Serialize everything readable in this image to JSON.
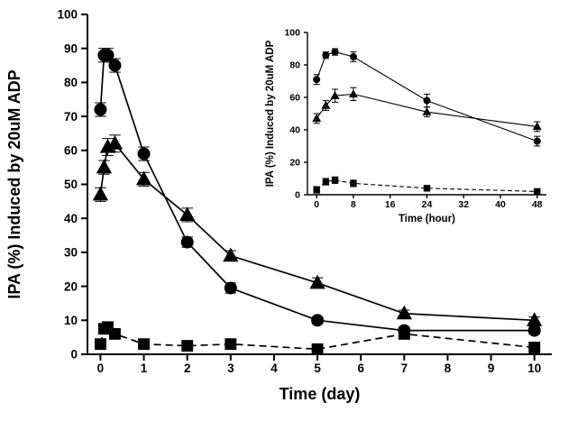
{
  "figure": {
    "background": "#ffffff",
    "ink": "#000000"
  },
  "chart_data": [
    {
      "id": "main",
      "type": "line",
      "title": "",
      "xlabel": "Time (day)",
      "ylabel": "IPA (%) Induced by 20uM ADP",
      "xlim": [
        0,
        10
      ],
      "ylim": [
        0,
        100
      ],
      "xticks": [
        0,
        1,
        2,
        3,
        4,
        5,
        6,
        7,
        8,
        9,
        10
      ],
      "yticks": [
        0,
        10,
        20,
        30,
        40,
        50,
        60,
        70,
        80,
        90,
        100
      ],
      "grid": false,
      "legend": "none",
      "series": [
        {
          "name": "circles",
          "marker": "circle",
          "line": "solid",
          "color": "#000000",
          "x": [
            0,
            0.083,
            0.167,
            0.333,
            1,
            2,
            3,
            5,
            7,
            10
          ],
          "y": [
            72,
            88,
            88,
            85,
            59,
            33,
            19.5,
            10,
            7,
            7
          ],
          "yerr": [
            2,
            2,
            2,
            2,
            2,
            1.5,
            1.5,
            1,
            1,
            1
          ]
        },
        {
          "name": "triangles",
          "marker": "triangle",
          "line": "solid",
          "color": "#000000",
          "x": [
            0,
            0.083,
            0.167,
            0.333,
            1,
            2,
            3,
            5,
            7,
            10
          ],
          "y": [
            47,
            55,
            61,
            62,
            51.5,
            41,
            29,
            21,
            12,
            10
          ],
          "yerr": [
            2,
            2,
            2.5,
            2.5,
            2,
            2,
            1.5,
            1.5,
            1,
            1
          ]
        },
        {
          "name": "squares",
          "marker": "square",
          "line": "dashed",
          "color": "#000000",
          "x": [
            0,
            0.083,
            0.167,
            0.333,
            1,
            2,
            3,
            5,
            7,
            10
          ],
          "y": [
            3,
            7.5,
            8,
            6,
            3,
            2.5,
            3,
            1.5,
            6,
            2
          ],
          "yerr": [
            1,
            1.5,
            1.5,
            1,
            1,
            1,
            1,
            0.5,
            1,
            0.5
          ]
        }
      ]
    },
    {
      "id": "inset",
      "type": "line",
      "title": "",
      "xlabel": "Time (hour)",
      "ylabel": "IPA (%) Induced by 20uM ADP",
      "xlim": [
        0,
        48
      ],
      "ylim": [
        0,
        100
      ],
      "xticks": [
        0,
        8,
        16,
        24,
        32,
        40,
        48
      ],
      "yticks": [
        0,
        20,
        40,
        60,
        80,
        100
      ],
      "grid": false,
      "legend": "none",
      "series": [
        {
          "name": "circles",
          "marker": "circle",
          "line": "solid",
          "color": "#000000",
          "x": [
            0,
            2,
            4,
            8,
            24,
            48
          ],
          "y": [
            71,
            86,
            88,
            85,
            58,
            33
          ],
          "yerr": [
            3,
            2,
            2,
            3,
            4,
            3
          ]
        },
        {
          "name": "triangles",
          "marker": "triangle",
          "line": "solid",
          "color": "#000000",
          "x": [
            0,
            2,
            4,
            8,
            24,
            48
          ],
          "y": [
            47,
            55,
            61,
            62,
            51,
            42
          ],
          "yerr": [
            3,
            3,
            4,
            4,
            3,
            3
          ]
        },
        {
          "name": "squares",
          "marker": "square",
          "line": "dashed",
          "color": "#000000",
          "x": [
            0,
            2,
            4,
            8,
            24,
            48
          ],
          "y": [
            3,
            8,
            9,
            7,
            4,
            2
          ],
          "yerr": [
            2,
            2,
            2,
            2,
            1,
            1
          ]
        }
      ]
    }
  ]
}
